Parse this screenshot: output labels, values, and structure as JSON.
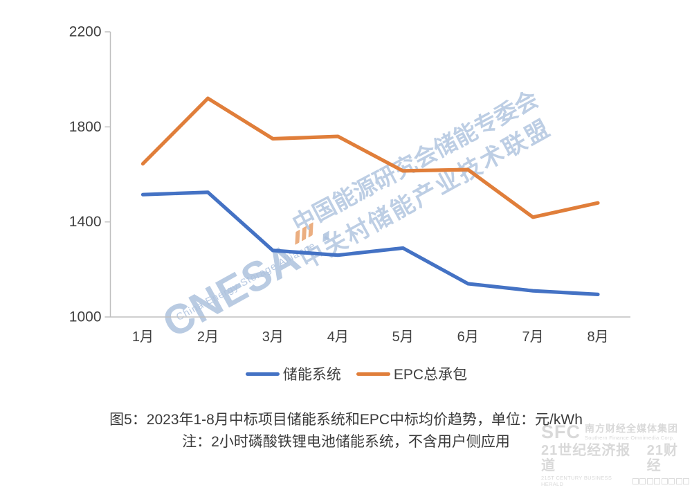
{
  "chart_data": {
    "type": "line",
    "categories": [
      "1月",
      "2月",
      "3月",
      "4月",
      "5月",
      "6月",
      "7月",
      "8月"
    ],
    "series": [
      {
        "name": "储能系统",
        "color": "#4472C4",
        "values": [
          1515,
          1525,
          1280,
          1260,
          1290,
          1140,
          1110,
          1095
        ]
      },
      {
        "name": "EPC总承包",
        "color": "#E07E3A",
        "values": [
          1645,
          1920,
          1750,
          1760,
          1615,
          1620,
          1420,
          1480
        ]
      }
    ],
    "title": "2023年1-8月中标项目储能系统和EPC中标均价趋势",
    "unit": "元/kWh",
    "xlabel": "",
    "ylabel": "",
    "ylim": [
      1000,
      2200
    ],
    "yticks": [
      1000,
      1400,
      1800,
      2200
    ],
    "grid": false,
    "legend_position": "bottom",
    "axis_color": "#BFBFBF",
    "tick_label_color": "#404040"
  },
  "legend": {
    "items": [
      {
        "label": "储能系统",
        "color": "#4472C4"
      },
      {
        "label": "EPC总承包",
        "color": "#E07E3A"
      }
    ]
  },
  "caption": {
    "line1": "图5：2023年1-8月中标项目储能系统和EPC中标均价趋势，单位：元/kWh",
    "line2": "注：2小时磷酸铁锂电池储能系统，不含用户侧应用"
  },
  "watermark": {
    "logo_text": "CNESA",
    "logo_subtext": "China Energy Storage Alliance",
    "line1": "中国能源研究会储能专委会",
    "line2": "中关村储能产业技术联盟",
    "color": "#ADC2DE",
    "accent_color": "#E8A06A"
  },
  "footer_logo": {
    "sfc": "SFC",
    "org_cn": "南方财经全媒体集团",
    "org_en": "Southern Finance Omnimedia Corp.",
    "brand1": "21世纪经济报道",
    "brand2": "21财经",
    "brand_en": "21ST CENTURY BUSINESS HERALD"
  }
}
